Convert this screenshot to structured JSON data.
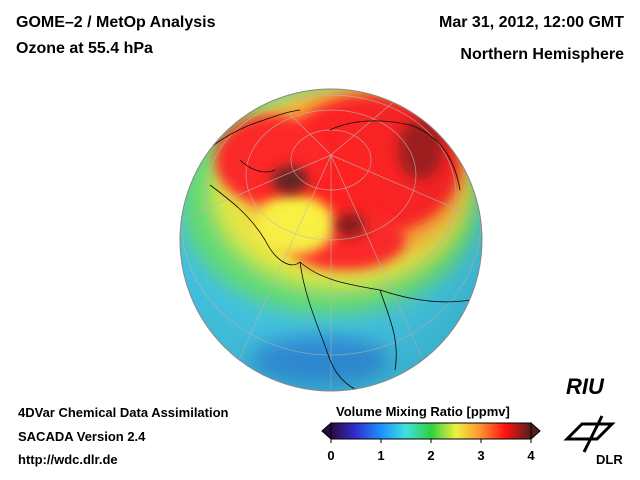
{
  "header": {
    "title_line1": "GOME–2 / MetOp Analysis",
    "title_line2": "Ozone at 55.4 hPa",
    "date": "Mar 31, 2012, 12:00 GMT",
    "region": "Northern Hemisphere"
  },
  "footer": {
    "line1": "4DVar Chemical Data Assimilation",
    "line2": "SACADA Version 2.4",
    "url": "http://wdc.dlr.de"
  },
  "colorbar": {
    "title": "Volume Mixing Ratio [ppmv]",
    "min": 0,
    "max": 4,
    "ticks": [
      "0",
      "1",
      "2",
      "3",
      "4"
    ],
    "colors": [
      "#2a0a40",
      "#3030d0",
      "#1e90ff",
      "#40e0e0",
      "#30d040",
      "#f0f040",
      "#ff9030",
      "#ff1010",
      "#502020"
    ]
  },
  "logos": {
    "riu": "RIU",
    "dlr": "DLR"
  }
}
